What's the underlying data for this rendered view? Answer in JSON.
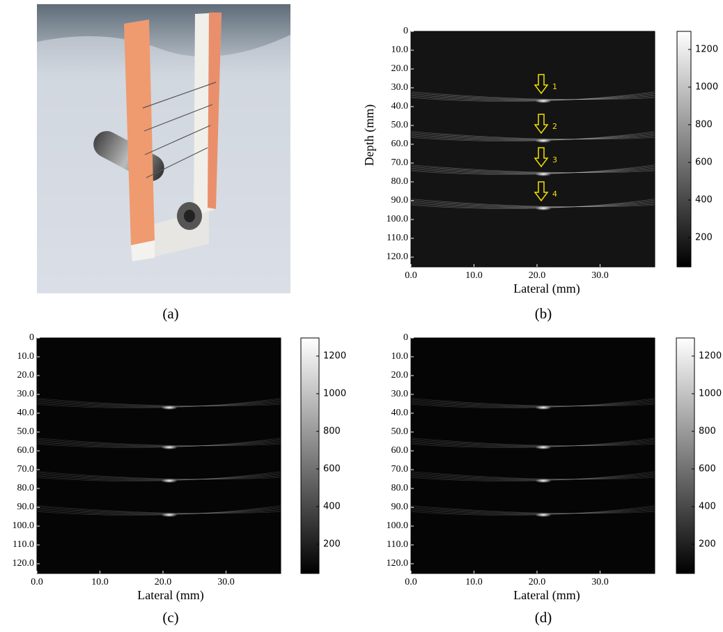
{
  "panels": [
    {
      "caption": "(a)"
    },
    {
      "caption": "(b)",
      "y_label": "Depth (mm)",
      "x_label": "Lateral (mm)",
      "y_ticks": [
        "0",
        "10.0",
        "20.0",
        "30.0",
        "40.0",
        "50.0",
        "60.0",
        "70.0",
        "80.0",
        "90.0",
        "100.0",
        "110.0",
        "120.0"
      ],
      "x_ticks": [
        "0.0",
        "10.0",
        "20.0",
        "30.0"
      ],
      "colorbar_ticks": [
        "200",
        "400",
        "600",
        "800",
        "1000",
        "1200"
      ],
      "markers": [
        "1",
        "2",
        "3",
        "4"
      ]
    },
    {
      "caption": "(c)",
      "x_label": "Lateral (mm)",
      "y_ticks": [
        "0",
        "10.0",
        "20.0",
        "30.0",
        "40.0",
        "50.0",
        "60.0",
        "70.0",
        "80.0",
        "90.0",
        "100.0",
        "110.0",
        "120.0"
      ],
      "x_ticks": [
        "0.0",
        "10.0",
        "20.0",
        "30.0"
      ],
      "colorbar_ticks": [
        "200",
        "400",
        "600",
        "800",
        "1000",
        "1200"
      ]
    },
    {
      "caption": "(d)",
      "x_label": "Lateral (mm)",
      "y_ticks": [
        "0",
        "10.0",
        "20.0",
        "30.0",
        "40.0",
        "50.0",
        "60.0",
        "70.0",
        "80.0",
        "90.0",
        "100.0",
        "110.0",
        "120.0"
      ],
      "x_ticks": [
        "0.0",
        "10.0",
        "20.0",
        "30.0"
      ],
      "colorbar_ticks": [
        "200",
        "400",
        "600",
        "800",
        "1000",
        "1200"
      ]
    }
  ]
}
